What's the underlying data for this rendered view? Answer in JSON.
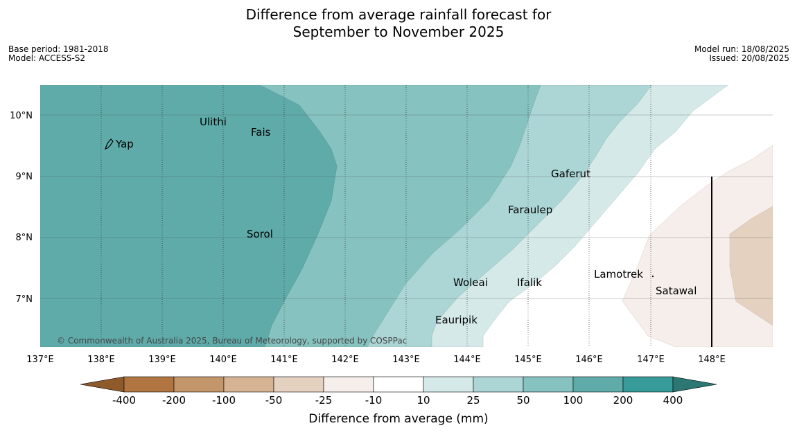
{
  "title": {
    "line1": "Difference from average rainfall forecast for",
    "line2": "September to November 2025"
  },
  "meta_left": [
    "Base period: 1981-2018",
    "Model: ACCESS-S2"
  ],
  "meta_right": [
    "Model run: 18/08/2025",
    "Issued: 20/08/2025"
  ],
  "map": {
    "lon_range": [
      137,
      149
    ],
    "lat_range": [
      6.2,
      10.5
    ],
    "lon_ticks": [
      "137°E",
      "138°E",
      "139°E",
      "140°E",
      "141°E",
      "142°E",
      "143°E",
      "144°E",
      "145°E",
      "146°E",
      "147°E",
      "148°E"
    ],
    "lat_ticks": [
      "10°N",
      "9°N",
      "8°N",
      "7°N"
    ],
    "places": [
      {
        "name": "Yap",
        "lon": 138.25,
        "lat": 9.5
      },
      {
        "name": "Ulithi",
        "lon": 139.75,
        "lat": 9.9
      },
      {
        "name": "Fais",
        "lon": 140.5,
        "lat": 9.75
      },
      {
        "name": "Gaferut",
        "lon": 145.4,
        "lat": 9.05
      },
      {
        "name": "Faraulep",
        "lon": 144.7,
        "lat": 8.45
      },
      {
        "name": "Sorol",
        "lon": 140.4,
        "lat": 8.05
      },
      {
        "name": "Lamotrek",
        "lon": 146.1,
        "lat": 7.4
      },
      {
        "name": "Woleai",
        "lon": 143.9,
        "lat": 7.3
      },
      {
        "name": "Ifalik",
        "lon": 144.75,
        "lat": 7.3
      },
      {
        "name": "Satawal",
        "lon": 147.05,
        "lat": 7.15
      },
      {
        "name": "Eauripik",
        "lon": 143.5,
        "lat": 6.7
      }
    ],
    "credit": "© Commonwealth of Australia 2025, Bureau of Meteorology, supported by COSPPac"
  },
  "colorbar": {
    "labels": [
      "-400",
      "-200",
      "-100",
      "-50",
      "-25",
      "-10",
      "10",
      "25",
      "50",
      "100",
      "200",
      "400"
    ],
    "colors": [
      "#8e5a2a",
      "#b07540",
      "#c2956a",
      "#d6b393",
      "#e4d1c0",
      "#f5eeea",
      "#ffffff",
      "#d5e9e9",
      "#acd6d5",
      "#86c2c0",
      "#5eabaa",
      "#369b99",
      "#2c7673"
    ],
    "label": "Difference from average (mm)"
  }
}
